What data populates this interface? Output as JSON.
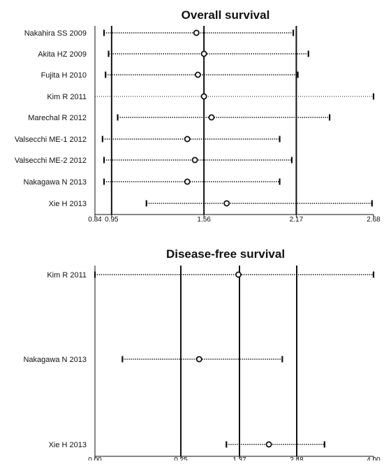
{
  "colors": {
    "ink": "#111111",
    "background": "#ffffff"
  },
  "chart_data": [
    {
      "type": "forest",
      "title": "Overall survival",
      "xticks": [
        0.84,
        0.95,
        1.56,
        2.17,
        2.68
      ],
      "xtick_labels": [
        "0.84",
        "0.95",
        "1.56",
        "2.17",
        "2.68"
      ],
      "xlim": [
        0.84,
        2.68
      ],
      "reference_lines": [
        0.95,
        1.56,
        2.17
      ],
      "studies": [
        {
          "label": "Nakahira SS 2009",
          "estimate": 1.51,
          "lower": 0.9,
          "upper": 2.15
        },
        {
          "label": "Akita HZ 2009",
          "estimate": 1.56,
          "lower": 0.93,
          "upper": 2.25
        },
        {
          "label": "Fujita H 2010",
          "estimate": 1.52,
          "lower": 0.91,
          "upper": 2.18
        },
        {
          "label": "Kim R 2011",
          "estimate": 1.56,
          "lower": 0.84,
          "upper": 2.68,
          "line_style": "dotted-thin"
        },
        {
          "label": "Marechal R 2012",
          "estimate": 1.61,
          "lower": 0.99,
          "upper": 2.39
        },
        {
          "label": "Valsecchi ME-1 2012",
          "estimate": 1.45,
          "lower": 0.89,
          "upper": 2.06
        },
        {
          "label": "Valsecchi ME-2 2012",
          "estimate": 1.5,
          "lower": 0.9,
          "upper": 2.14
        },
        {
          "label": "Nakagawa N 2013",
          "estimate": 1.45,
          "lower": 0.9,
          "upper": 2.06
        },
        {
          "label": "Xie H 2013",
          "estimate": 1.71,
          "lower": 1.18,
          "upper": 2.67
        }
      ]
    },
    {
      "type": "forest",
      "title": "Disease-free survival",
      "xticks": [
        0.0,
        0.25,
        1.37,
        2.48,
        4.0
      ],
      "xtick_labels": [
        "0.00",
        "0.25",
        "1.37",
        "2.48",
        "4.00"
      ],
      "xlim": [
        0.0,
        4.0
      ],
      "reference_lines": [
        0.25,
        1.37,
        2.48
      ],
      "scale": "piecewise",
      "studies": [
        {
          "label": "Kim R 2011",
          "estimate": 1.35,
          "lower": 0.0,
          "upper": 4.0
        },
        {
          "label": "Nakagawa N 2013",
          "estimate": 0.6,
          "lower": 0.08,
          "upper": 2.2
        },
        {
          "label": "Xie H 2013",
          "estimate": 1.94,
          "lower": 1.12,
          "upper": 3.03
        }
      ]
    }
  ]
}
